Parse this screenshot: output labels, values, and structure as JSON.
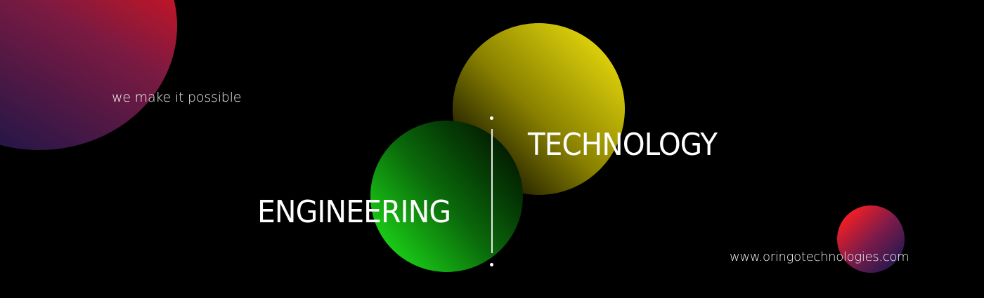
{
  "banner": {
    "tagline": "we make it possible",
    "word_right": "TECHNOLOGY",
    "word_left": "ENGINEERING",
    "website": "www.oringotechnologies.com"
  },
  "colors": {
    "background": "#000000",
    "text": "#ffffff",
    "orb_red": "#f41212",
    "orb_purple": "#201648",
    "orb_yellow": "#f1e30d",
    "orb_green": "#1ee41a"
  }
}
